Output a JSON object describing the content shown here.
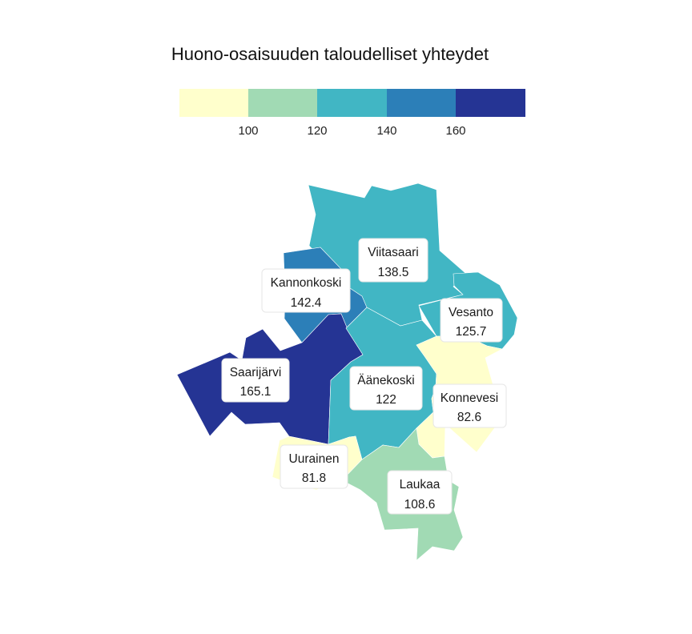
{
  "title": "Huono-osaisuuden taloudelliset yhteydet",
  "legend": {
    "colors": [
      "#ffffcc",
      "#a1dab4",
      "#41b6c4",
      "#2c7fb8",
      "#253494"
    ],
    "ticks": [
      "100",
      "120",
      "140",
      "160"
    ],
    "breaks": [
      100,
      120,
      140,
      160
    ]
  },
  "regions": [
    {
      "id": "viitasaari",
      "name": "Viitasaari",
      "value": "138.5"
    },
    {
      "id": "kannonkoski",
      "name": "Kannonkoski",
      "value": "142.4"
    },
    {
      "id": "vesanto",
      "name": "Vesanto",
      "value": "125.7"
    },
    {
      "id": "saarijarvi",
      "name": "Saarijärvi",
      "value": "165.1"
    },
    {
      "id": "aanekoski",
      "name": "Äänekoski",
      "value": "122"
    },
    {
      "id": "konnevesi",
      "name": "Konnevesi",
      "value": "82.6"
    },
    {
      "id": "uurainen",
      "name": "Uurainen",
      "value": "81.8"
    },
    {
      "id": "laukaa",
      "name": "Laukaa",
      "value": "108.6"
    }
  ]
}
